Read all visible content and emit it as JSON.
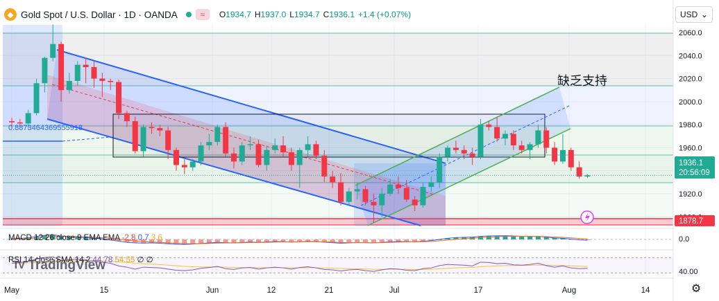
{
  "header": {
    "logo_glyph": "◆",
    "symbol": "Gold Spot / U.S. Dollar · 1D · OANDA",
    "wave_glyph": "≈",
    "o_label": "O",
    "o_value": "1934.7",
    "h_label": "H",
    "h_value": "1937.0",
    "l_label": "L",
    "l_value": "1934.7",
    "c_label": "C",
    "c_value": "1936.1",
    "change": "+1.4 (+0.07%)"
  },
  "currency_button": {
    "label": "USD",
    "chevron": "⌄"
  },
  "settings_icon": "⚙",
  "watermark": {
    "logo": "TV",
    "text": "TradingView"
  },
  "fib_label": "0.8873464369555918",
  "annotation": "缺乏支持",
  "macd": {
    "label": "MACD 12 26 close 9 EMA EMA",
    "v1": "-2.8",
    "v2": "0.7",
    "v3": "3.6"
  },
  "rsi": {
    "label": "RSI 14 close SMA 14 2",
    "v1": "44.78",
    "v2": "54.55",
    "v3": "∅",
    "v4": "∅"
  },
  "colors": {
    "up": "#22ab94",
    "down": "#f23645",
    "channel": "#2962ff",
    "green_channel": "#4caf50",
    "macd_line": "#2962ff",
    "signal_line": "#ff6d00",
    "rsi_line": "#7e57c2"
  },
  "chart_data": {
    "type": "candlestick",
    "symbol": "XAUUSD",
    "timeframe": "1D",
    "ylim": [
      1878.7,
      2060
    ],
    "y_ticks": [
      2060.0,
      2040.0,
      2020.0,
      2000.0,
      1980.0,
      1960.0,
      1940.0,
      1920.0,
      1900.0
    ],
    "x_ticks": [
      "May",
      "15",
      "Jun",
      "12",
      "21",
      "Jul",
      "17",
      "Aug",
      "14"
    ],
    "price_tag": {
      "value": "1936.1",
      "countdown": "20:56:09"
    },
    "low_tag": "1878.7",
    "macd_tick": "0.0",
    "rsi_tick": "40.00",
    "candles": [
      [
        1983,
        1986,
        1977,
        1982
      ],
      [
        1982,
        1985,
        1978,
        1981
      ],
      [
        1981,
        1993,
        1977,
        1990
      ],
      [
        1990,
        2020,
        1988,
        2016
      ],
      [
        2016,
        2039,
        2008,
        2038
      ],
      [
        2038,
        2067,
        2035,
        2050
      ],
      [
        2050,
        2052,
        2000,
        2010
      ],
      [
        2010,
        2025,
        2007,
        2018
      ],
      [
        2018,
        2035,
        2014,
        2032
      ],
      [
        2032,
        2038,
        2016,
        2030
      ],
      [
        2030,
        2035,
        2012,
        2020
      ],
      [
        2020,
        2025,
        2004,
        2018
      ],
      [
        2018,
        2020,
        2010,
        2017
      ],
      [
        2017,
        2019,
        1985,
        1990
      ],
      [
        1990,
        1992,
        1978,
        1983
      ],
      [
        1983,
        1987,
        1955,
        1957
      ],
      [
        1957,
        1980,
        1952,
        1978
      ],
      [
        1978,
        1982,
        1972,
        1977
      ],
      [
        1977,
        1980,
        1970,
        1975
      ],
      [
        1975,
        1978,
        1950,
        1958
      ],
      [
        1958,
        1960,
        1940,
        1945
      ],
      [
        1945,
        1950,
        1937,
        1943
      ],
      [
        1943,
        1950,
        1940,
        1948
      ],
      [
        1948,
        1965,
        1945,
        1962
      ],
      [
        1962,
        1972,
        1958,
        1965
      ],
      [
        1965,
        1980,
        1962,
        1978
      ],
      [
        1978,
        1982,
        1952,
        1955
      ],
      [
        1955,
        1960,
        1942,
        1948
      ],
      [
        1948,
        1965,
        1945,
        1962
      ],
      [
        1962,
        1970,
        1958,
        1963
      ],
      [
        1963,
        1967,
        1943,
        1945
      ],
      [
        1945,
        1962,
        1940,
        1958
      ],
      [
        1958,
        1968,
        1955,
        1962
      ],
      [
        1962,
        1970,
        1952,
        1956
      ],
      [
        1956,
        1960,
        1940,
        1945
      ],
      [
        1945,
        1960,
        1925,
        1958
      ],
      [
        1958,
        1970,
        1952,
        1963
      ],
      [
        1963,
        1966,
        1950,
        1953
      ],
      [
        1953,
        1958,
        1930,
        1935
      ],
      [
        1935,
        1940,
        1925,
        1930
      ],
      [
        1930,
        1938,
        1910,
        1913
      ],
      [
        1913,
        1925,
        1910,
        1922
      ],
      [
        1922,
        1930,
        1915,
        1924
      ],
      [
        1924,
        1927,
        1910,
        1913
      ],
      [
        1913,
        1920,
        1895,
        1910
      ],
      [
        1910,
        1925,
        1900,
        1920
      ],
      [
        1920,
        1933,
        1918,
        1928
      ],
      [
        1928,
        1935,
        1920,
        1925
      ],
      [
        1925,
        1932,
        1913,
        1915
      ],
      [
        1915,
        1918,
        1905,
        1910
      ],
      [
        1910,
        1930,
        1908,
        1926
      ],
      [
        1926,
        1935,
        1922,
        1930
      ],
      [
        1930,
        1955,
        1925,
        1952
      ],
      [
        1952,
        1962,
        1948,
        1960
      ],
      [
        1960,
        1966,
        1955,
        1958
      ],
      [
        1958,
        1962,
        1950,
        1955
      ],
      [
        1955,
        1960,
        1945,
        1952
      ],
      [
        1952,
        1985,
        1950,
        1980
      ],
      [
        1980,
        1983,
        1975,
        1978
      ],
      [
        1978,
        1987,
        1965,
        1968
      ],
      [
        1968,
        1975,
        1962,
        1972
      ],
      [
        1972,
        1975,
        1958,
        1962
      ],
      [
        1962,
        1966,
        1955,
        1958
      ],
      [
        1958,
        1965,
        1950,
        1963
      ],
      [
        1963,
        1980,
        1960,
        1975
      ],
      [
        1975,
        1978,
        1955,
        1960
      ],
      [
        1960,
        1965,
        1945,
        1948
      ],
      [
        1948,
        1972,
        1946,
        1958
      ],
      [
        1958,
        1960,
        1940,
        1943
      ],
      [
        1943,
        1948,
        1933,
        1935
      ],
      [
        1935,
        1937,
        1934,
        1936
      ]
    ],
    "macd_hist": [
      0.5,
      0.8,
      1.5,
      2.5,
      3.5,
      4.0,
      3.0,
      2.5,
      2.0,
      1.5,
      1.0,
      0.5,
      -0.5,
      -1.5,
      -2.5,
      -3.0,
      -3.2,
      -3.0,
      -3.3,
      -3.8,
      -4.2,
      -4.3,
      -4.0,
      -3.5,
      -3.0,
      -2.5,
      -2.8,
      -3.0,
      -2.6,
      -2.2,
      -2.5,
      -2.2,
      -1.8,
      -1.9,
      -2.3,
      -2.1,
      -1.7,
      -1.9,
      -2.4,
      -2.8,
      -3.3,
      -3.0,
      -2.7,
      -2.8,
      -3.0,
      -2.6,
      -2.0,
      -1.8,
      -1.9,
      -2.1,
      -1.6,
      -1.0,
      0.0,
      1.0,
      1.6,
      1.8,
      2.0,
      2.6,
      3.0,
      3.1,
      3.2,
      3.0,
      2.7,
      2.5,
      2.5,
      2.0,
      1.3,
      1.0,
      0.3,
      -0.4,
      -0.7
    ],
    "rsi": [
      55,
      57,
      60,
      66,
      70,
      72,
      62,
      64,
      66,
      63,
      60,
      58,
      55,
      48,
      45,
      40,
      45,
      44,
      43,
      40,
      37,
      36,
      38,
      42,
      44,
      47,
      41,
      39,
      43,
      44,
      40,
      43,
      45,
      43,
      40,
      44,
      46,
      43,
      39,
      38,
      35,
      38,
      39,
      36,
      34,
      38,
      41,
      40,
      37,
      36,
      41,
      43,
      49,
      52,
      51,
      50,
      48,
      58,
      57,
      54,
      55,
      51,
      50,
      52,
      55,
      49,
      45,
      48,
      43,
      41,
      42
    ]
  }
}
